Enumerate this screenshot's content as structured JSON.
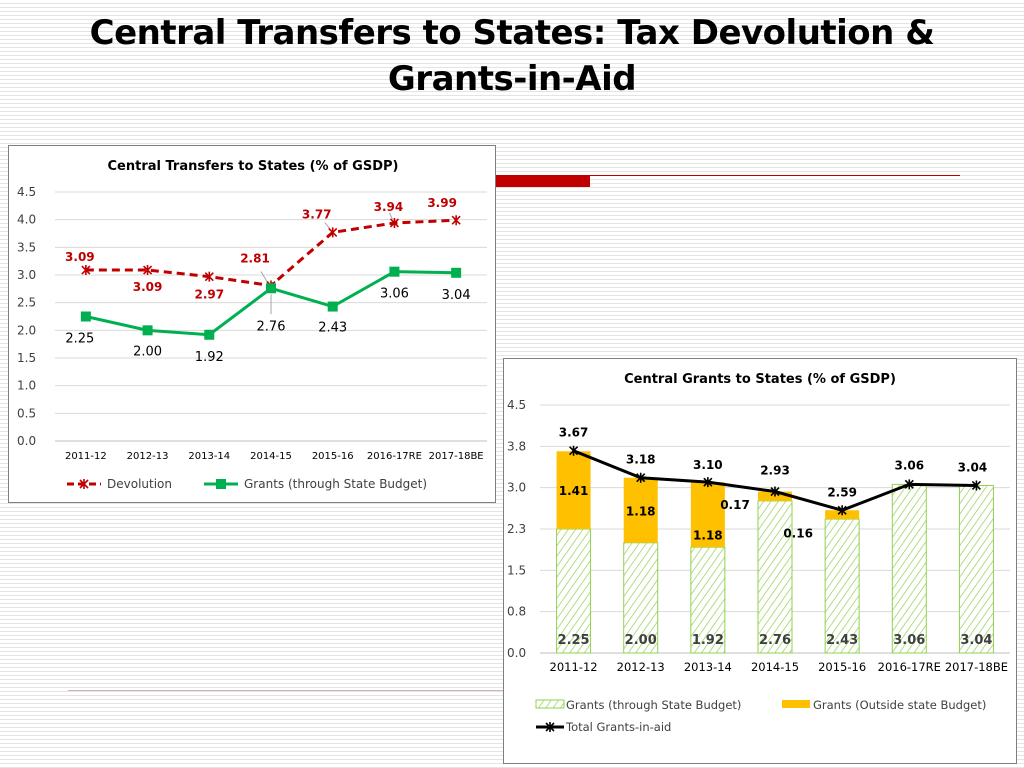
{
  "page": {
    "title_line1": "Central Transfers to States: Tax Devolution &",
    "title_line2": "Grants-in-Aid"
  },
  "colors": {
    "accent_red": "#c00000",
    "devolution": "#c00000",
    "grants_line": "#00b050",
    "grants_fill": "#92d050",
    "outside": "#ffc000",
    "total": "#000000"
  },
  "chart_data": [
    {
      "type": "line",
      "title": "Central Transfers to States (% of GSDP)",
      "categories": [
        "2011-12",
        "2012-13",
        "2013-14",
        "2014-15",
        "2015-16",
        "2016-17RE",
        "2017-18BE"
      ],
      "ylim": [
        0,
        4.5
      ],
      "yticks": [
        "0.0",
        "0.5",
        "1.0",
        "1.5",
        "2.0",
        "2.5",
        "3.0",
        "3.5",
        "4.0",
        "4.5"
      ],
      "series": [
        {
          "name": "Devolution",
          "values": [
            3.09,
            3.09,
            2.97,
            2.81,
            3.77,
            3.94,
            3.99
          ],
          "labels": [
            "3.09",
            "3.09",
            "2.97",
            "2.81",
            "3.77",
            "3.94",
            "3.99"
          ]
        },
        {
          "name": "Grants (through State Budget)",
          "values": [
            2.25,
            2.0,
            1.92,
            2.76,
            2.43,
            3.06,
            3.04
          ],
          "labels": [
            "2.25",
            "2.00",
            "1.92",
            "2.76",
            "2.43",
            "3.06",
            "3.04"
          ]
        }
      ]
    },
    {
      "type": "bar",
      "stacked": true,
      "title": "Central Grants to States (% of GSDP)",
      "categories": [
        "2011-12",
        "2012-13",
        "2013-14",
        "2014-15",
        "2015-16",
        "2016-17RE",
        "2017-18BE"
      ],
      "ylim": [
        0,
        4.5
      ],
      "yticks": [
        "0.0",
        "0.8",
        "1.5",
        "2.3",
        "3.0",
        "3.8",
        "4.5"
      ],
      "series": [
        {
          "name": "Grants (through State Budget)",
          "values": [
            2.25,
            2.0,
            1.92,
            2.76,
            2.43,
            3.06,
            3.04
          ],
          "labels": [
            "2.25",
            "2.00",
            "1.92",
            "2.76",
            "2.43",
            "3.06",
            "3.04"
          ]
        },
        {
          "name": "Grants (Outside state Budget)",
          "values": [
            1.41,
            1.18,
            1.18,
            0.17,
            0.16,
            0,
            0
          ],
          "labels": [
            "1.41",
            "1.18",
            "1.18",
            "0.17",
            "0.16",
            "",
            ""
          ]
        },
        {
          "name": "Total Grants-in-aid",
          "type": "line",
          "values": [
            3.67,
            3.18,
            3.1,
            2.93,
            2.59,
            3.06,
            3.04
          ],
          "labels": [
            "3.67",
            "3.18",
            "3.10",
            "2.93",
            "2.59",
            "3.06",
            "3.04"
          ]
        }
      ]
    }
  ]
}
